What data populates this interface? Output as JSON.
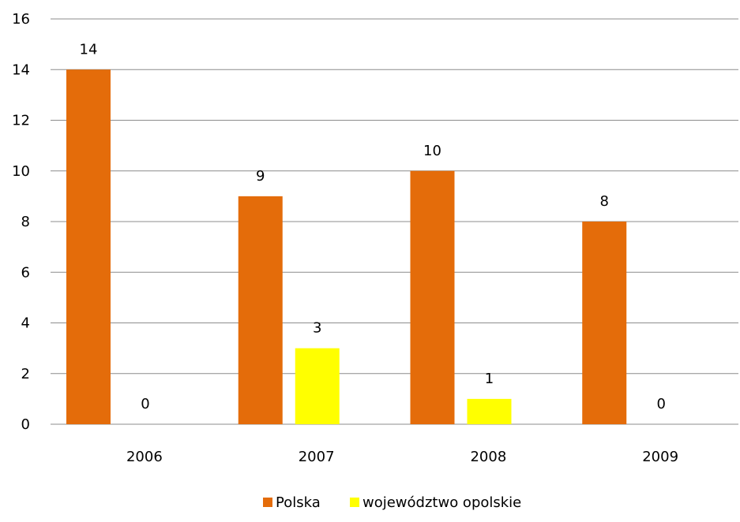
{
  "chart_data": {
    "type": "bar",
    "title": "",
    "xlabel": "",
    "ylabel": "",
    "categories": [
      "2006",
      "2007",
      "2008",
      "2009"
    ],
    "series": [
      {
        "name": "Polska",
        "values": [
          14,
          9,
          10,
          8
        ],
        "color": "#E46C0A"
      },
      {
        "name": "województwo opolskie",
        "values": [
          0,
          3,
          1,
          0
        ],
        "color": "#FFFF00"
      }
    ],
    "ylim": [
      0,
      16
    ],
    "yticks": [
      0,
      2,
      4,
      6,
      8,
      10,
      12,
      14,
      16
    ],
    "grid": true,
    "data_labels": true,
    "legend_position": "bottom"
  }
}
